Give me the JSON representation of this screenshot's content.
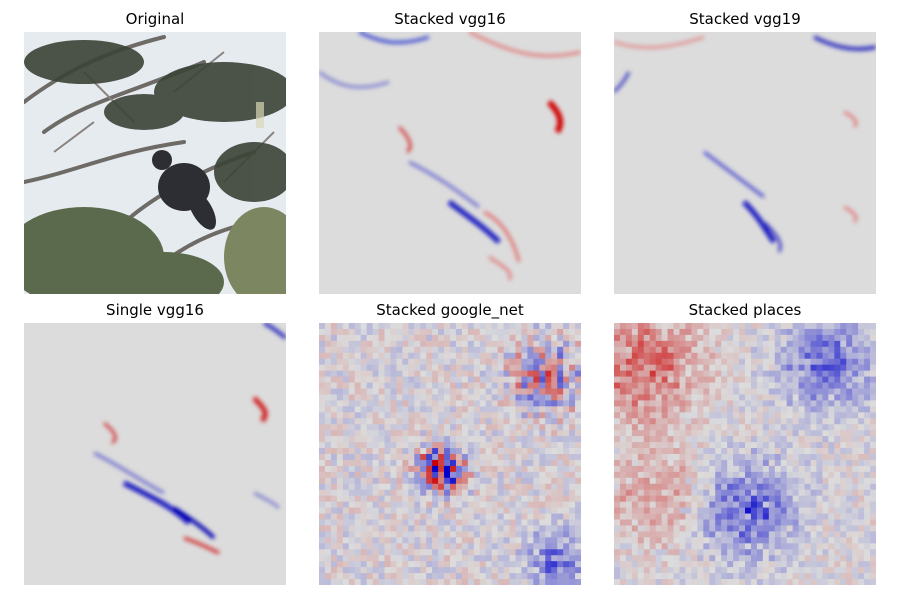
{
  "chart_data": [
    {
      "type": "image",
      "title": "Original"
    },
    {
      "type": "heatmap",
      "title": "Stacked vgg16"
    },
    {
      "type": "heatmap",
      "title": "Stacked vgg19"
    },
    {
      "type": "heatmap",
      "title": "Single vgg16"
    },
    {
      "type": "heatmap",
      "title": "Stacked google_net"
    },
    {
      "type": "heatmap",
      "title": "Stacked places"
    }
  ],
  "colors": {
    "positive": "#cc0000",
    "negative": "#0000cc",
    "neutral": "#dcdcdc"
  }
}
